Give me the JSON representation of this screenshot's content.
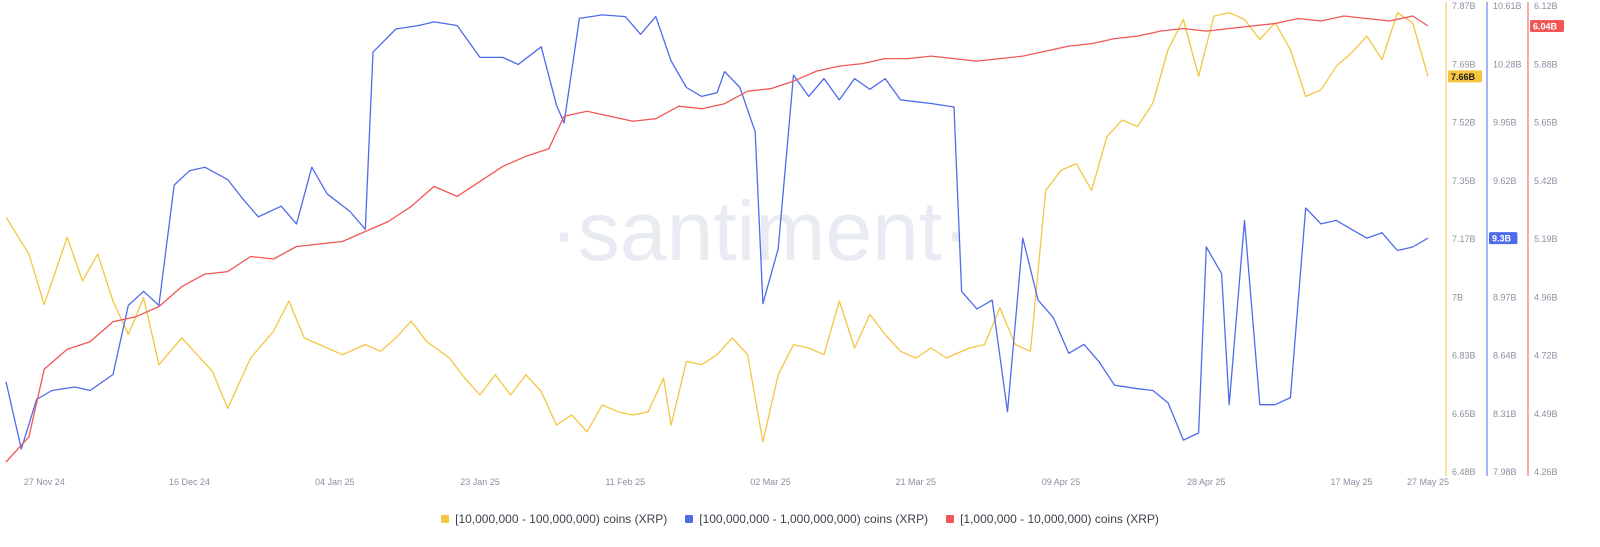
{
  "watermark": "·santiment·",
  "x_ticks": [
    "27 Nov 24",
    "16 Dec 24",
    "04 Jan 25",
    "23 Jan 25",
    "11 Feb 25",
    "02 Mar 25",
    "21 Mar 25",
    "09 Apr 25",
    "28 Apr 25",
    "17 May 25",
    "27 May 25"
  ],
  "axes": {
    "yellow": {
      "ticks": [
        "7.87B",
        "7.69B",
        "7.52B",
        "7.35B",
        "7.17B",
        "7B",
        "6.83B",
        "6.65B",
        "6.48B"
      ],
      "current": "7.66B",
      "color": "#f5c542"
    },
    "blue": {
      "ticks": [
        "10.61B",
        "10.28B",
        "9.95B",
        "9.62B",
        "9.3B",
        "8.97B",
        "8.64B",
        "8.31B",
        "7.98B"
      ],
      "current": "9.3B",
      "color": "#4f6bea"
    },
    "red": {
      "ticks": [
        "6.12B",
        "5.88B",
        "5.65B",
        "5.42B",
        "5.19B",
        "4.96B",
        "4.72B",
        "4.49B",
        "4.26B"
      ],
      "current": "6.04B",
      "color": "#f25757"
    }
  },
  "legend": [
    {
      "label": "[10,000,000 - 100,000,000) coins (XRP)",
      "color": "#f5c542"
    },
    {
      "label": "[100,000,000 - 1,000,000,000) coins (XRP)",
      "color": "#4f6bea"
    },
    {
      "label": "[1,000,000 - 10,000,000) coins (XRP)",
      "color": "#f25757"
    }
  ],
  "chart_data": {
    "type": "line",
    "x_range": [
      "2024-11-22",
      "2025-05-27"
    ],
    "series": [
      {
        "name": "[10,000,000 - 100,000,000) coins (XRP)",
        "axis": "yellow",
        "color": "#f5c542",
        "ylim": [
          6.48,
          7.87
        ],
        "points": [
          [
            "2024-11-22",
            7.24
          ],
          [
            "2024-11-25",
            7.13
          ],
          [
            "2024-11-27",
            6.98
          ],
          [
            "2024-11-30",
            7.18
          ],
          [
            "2024-12-02",
            7.05
          ],
          [
            "2024-12-04",
            7.13
          ],
          [
            "2024-12-06",
            6.99
          ],
          [
            "2024-12-08",
            6.89
          ],
          [
            "2024-12-10",
            7.0
          ],
          [
            "2024-12-12",
            6.8
          ],
          [
            "2024-12-15",
            6.88
          ],
          [
            "2024-12-17",
            6.83
          ],
          [
            "2024-12-19",
            6.78
          ],
          [
            "2024-12-21",
            6.67
          ],
          [
            "2024-12-24",
            6.82
          ],
          [
            "2024-12-27",
            6.9
          ],
          [
            "2024-12-29",
            6.99
          ],
          [
            "2024-12-31",
            6.88
          ],
          [
            "2025-01-03",
            6.85
          ],
          [
            "2025-01-05",
            6.83
          ],
          [
            "2025-01-08",
            6.86
          ],
          [
            "2025-01-10",
            6.84
          ],
          [
            "2025-01-12",
            6.88
          ],
          [
            "2025-01-14",
            6.93
          ],
          [
            "2025-01-16",
            6.87
          ],
          [
            "2025-01-19",
            6.82
          ],
          [
            "2025-01-21",
            6.76
          ],
          [
            "2025-01-23",
            6.71
          ],
          [
            "2025-01-25",
            6.77
          ],
          [
            "2025-01-27",
            6.71
          ],
          [
            "2025-01-29",
            6.77
          ],
          [
            "2025-01-31",
            6.72
          ],
          [
            "2025-02-02",
            6.62
          ],
          [
            "2025-02-04",
            6.65
          ],
          [
            "2025-02-06",
            6.6
          ],
          [
            "2025-02-08",
            6.68
          ],
          [
            "2025-02-10",
            6.66
          ],
          [
            "2025-02-12",
            6.65
          ],
          [
            "2025-02-14",
            6.66
          ],
          [
            "2025-02-16",
            6.76
          ],
          [
            "2025-02-17",
            6.62
          ],
          [
            "2025-02-19",
            6.81
          ],
          [
            "2025-02-21",
            6.8
          ],
          [
            "2025-02-23",
            6.83
          ],
          [
            "2025-02-25",
            6.88
          ],
          [
            "2025-02-27",
            6.83
          ],
          [
            "2025-03-01",
            6.57
          ],
          [
            "2025-03-03",
            6.77
          ],
          [
            "2025-03-05",
            6.86
          ],
          [
            "2025-03-07",
            6.85
          ],
          [
            "2025-03-09",
            6.83
          ],
          [
            "2025-03-11",
            6.99
          ],
          [
            "2025-03-13",
            6.85
          ],
          [
            "2025-03-15",
            6.95
          ],
          [
            "2025-03-17",
            6.89
          ],
          [
            "2025-03-19",
            6.84
          ],
          [
            "2025-03-21",
            6.82
          ],
          [
            "2025-03-23",
            6.85
          ],
          [
            "2025-03-25",
            6.82
          ],
          [
            "2025-03-28",
            6.85
          ],
          [
            "2025-03-30",
            6.86
          ],
          [
            "2025-04-01",
            6.97
          ],
          [
            "2025-04-03",
            6.86
          ],
          [
            "2025-04-05",
            6.84
          ],
          [
            "2025-04-07",
            7.32
          ],
          [
            "2025-04-09",
            7.38
          ],
          [
            "2025-04-11",
            7.4
          ],
          [
            "2025-04-13",
            7.32
          ],
          [
            "2025-04-15",
            7.48
          ],
          [
            "2025-04-17",
            7.53
          ],
          [
            "2025-04-19",
            7.51
          ],
          [
            "2025-04-21",
            7.58
          ],
          [
            "2025-04-23",
            7.74
          ],
          [
            "2025-04-25",
            7.83
          ],
          [
            "2025-04-27",
            7.66
          ],
          [
            "2025-04-29",
            7.84
          ],
          [
            "2025-05-01",
            7.85
          ],
          [
            "2025-05-03",
            7.83
          ],
          [
            "2025-05-05",
            7.77
          ],
          [
            "2025-05-07",
            7.82
          ],
          [
            "2025-05-09",
            7.74
          ],
          [
            "2025-05-11",
            7.6
          ],
          [
            "2025-05-13",
            7.62
          ],
          [
            "2025-05-15",
            7.69
          ],
          [
            "2025-05-17",
            7.73
          ],
          [
            "2025-05-19",
            7.78
          ],
          [
            "2025-05-21",
            7.71
          ],
          [
            "2025-05-23",
            7.85
          ],
          [
            "2025-05-25",
            7.82
          ],
          [
            "2025-05-27",
            7.66
          ]
        ]
      },
      {
        "name": "[100,000,000 - 1,000,000,000) coins (XRP)",
        "axis": "blue",
        "color": "#4f6bea",
        "ylim": [
          7.98,
          10.61
        ],
        "points": [
          [
            "2024-11-22",
            8.49
          ],
          [
            "2024-11-24",
            8.11
          ],
          [
            "2024-11-26",
            8.39
          ],
          [
            "2024-11-28",
            8.44
          ],
          [
            "2024-12-01",
            8.46
          ],
          [
            "2024-12-03",
            8.44
          ],
          [
            "2024-12-06",
            8.53
          ],
          [
            "2024-12-08",
            8.92
          ],
          [
            "2024-12-10",
            9.0
          ],
          [
            "2024-12-12",
            8.92
          ],
          [
            "2024-12-14",
            9.6
          ],
          [
            "2024-12-16",
            9.68
          ],
          [
            "2024-12-18",
            9.7
          ],
          [
            "2024-12-21",
            9.63
          ],
          [
            "2024-12-23",
            9.52
          ],
          [
            "2024-12-25",
            9.42
          ],
          [
            "2024-12-28",
            9.48
          ],
          [
            "2024-12-30",
            9.38
          ],
          [
            "2025-01-01",
            9.7
          ],
          [
            "2025-01-03",
            9.55
          ],
          [
            "2025-01-06",
            9.45
          ],
          [
            "2025-01-08",
            9.35
          ],
          [
            "2025-01-09",
            10.35
          ],
          [
            "2025-01-12",
            10.48
          ],
          [
            "2025-01-15",
            10.5
          ],
          [
            "2025-01-17",
            10.52
          ],
          [
            "2025-01-20",
            10.5
          ],
          [
            "2025-01-23",
            10.32
          ],
          [
            "2025-01-26",
            10.32
          ],
          [
            "2025-01-28",
            10.28
          ],
          [
            "2025-01-31",
            10.38
          ],
          [
            "2025-02-02",
            10.05
          ],
          [
            "2025-02-03",
            9.95
          ],
          [
            "2025-02-05",
            10.54
          ],
          [
            "2025-02-08",
            10.56
          ],
          [
            "2025-02-11",
            10.55
          ],
          [
            "2025-02-13",
            10.45
          ],
          [
            "2025-02-15",
            10.55
          ],
          [
            "2025-02-17",
            10.3
          ],
          [
            "2025-02-19",
            10.15
          ],
          [
            "2025-02-21",
            10.1
          ],
          [
            "2025-02-23",
            10.12
          ],
          [
            "2025-02-24",
            10.24
          ],
          [
            "2025-02-26",
            10.15
          ],
          [
            "2025-02-28",
            9.9
          ],
          [
            "2025-03-01",
            8.93
          ],
          [
            "2025-03-03",
            9.24
          ],
          [
            "2025-03-05",
            10.22
          ],
          [
            "2025-03-07",
            10.1
          ],
          [
            "2025-03-09",
            10.2
          ],
          [
            "2025-03-11",
            10.08
          ],
          [
            "2025-03-13",
            10.2
          ],
          [
            "2025-03-15",
            10.14
          ],
          [
            "2025-03-17",
            10.2
          ],
          [
            "2025-03-19",
            10.08
          ],
          [
            "2025-03-21",
            10.07
          ],
          [
            "2025-03-23",
            10.06
          ],
          [
            "2025-03-26",
            10.04
          ],
          [
            "2025-03-27",
            9.0
          ],
          [
            "2025-03-29",
            8.9
          ],
          [
            "2025-03-31",
            8.95
          ],
          [
            "2025-04-02",
            8.32
          ],
          [
            "2025-04-04",
            9.3
          ],
          [
            "2025-04-06",
            8.95
          ],
          [
            "2025-04-08",
            8.85
          ],
          [
            "2025-04-10",
            8.65
          ],
          [
            "2025-04-12",
            8.7
          ],
          [
            "2025-04-14",
            8.6
          ],
          [
            "2025-04-16",
            8.47
          ],
          [
            "2025-04-19",
            8.45
          ],
          [
            "2025-04-21",
            8.44
          ],
          [
            "2025-04-23",
            8.37
          ],
          [
            "2025-04-25",
            8.16
          ],
          [
            "2025-04-27",
            8.2
          ],
          [
            "2025-04-28",
            9.25
          ],
          [
            "2025-04-30",
            9.1
          ],
          [
            "2025-05-01",
            8.36
          ],
          [
            "2025-05-03",
            9.4
          ],
          [
            "2025-05-05",
            8.36
          ],
          [
            "2025-05-07",
            8.36
          ],
          [
            "2025-05-09",
            8.4
          ],
          [
            "2025-05-11",
            9.47
          ],
          [
            "2025-05-13",
            9.38
          ],
          [
            "2025-05-15",
            9.4
          ],
          [
            "2025-05-17",
            9.35
          ],
          [
            "2025-05-19",
            9.3
          ],
          [
            "2025-05-21",
            9.33
          ],
          [
            "2025-05-23",
            9.23
          ],
          [
            "2025-05-25",
            9.25
          ],
          [
            "2025-05-27",
            9.3
          ]
        ]
      },
      {
        "name": "[1,000,000 - 10,000,000) coins (XRP)",
        "axis": "red",
        "color": "#f25757",
        "ylim": [
          4.26,
          6.12
        ],
        "points": [
          [
            "2024-11-22",
            4.3
          ],
          [
            "2024-11-25",
            4.4
          ],
          [
            "2024-11-27",
            4.67
          ],
          [
            "2024-11-30",
            4.75
          ],
          [
            "2024-12-03",
            4.78
          ],
          [
            "2024-12-06",
            4.86
          ],
          [
            "2024-12-09",
            4.88
          ],
          [
            "2024-12-12",
            4.92
          ],
          [
            "2024-12-15",
            5.0
          ],
          [
            "2024-12-18",
            5.05
          ],
          [
            "2024-12-21",
            5.06
          ],
          [
            "2024-12-24",
            5.12
          ],
          [
            "2024-12-27",
            5.11
          ],
          [
            "2024-12-30",
            5.16
          ],
          [
            "2025-01-02",
            5.17
          ],
          [
            "2025-01-05",
            5.18
          ],
          [
            "2025-01-08",
            5.22
          ],
          [
            "2025-01-11",
            5.26
          ],
          [
            "2025-01-14",
            5.32
          ],
          [
            "2025-01-17",
            5.4
          ],
          [
            "2025-01-20",
            5.36
          ],
          [
            "2025-01-23",
            5.42
          ],
          [
            "2025-01-26",
            5.48
          ],
          [
            "2025-01-29",
            5.52
          ],
          [
            "2025-02-01",
            5.55
          ],
          [
            "2025-02-03",
            5.68
          ],
          [
            "2025-02-06",
            5.7
          ],
          [
            "2025-02-09",
            5.68
          ],
          [
            "2025-02-12",
            5.66
          ],
          [
            "2025-02-15",
            5.67
          ],
          [
            "2025-02-18",
            5.72
          ],
          [
            "2025-02-21",
            5.71
          ],
          [
            "2025-02-24",
            5.73
          ],
          [
            "2025-02-27",
            5.78
          ],
          [
            "2025-03-02",
            5.79
          ],
          [
            "2025-03-05",
            5.82
          ],
          [
            "2025-03-08",
            5.86
          ],
          [
            "2025-03-11",
            5.88
          ],
          [
            "2025-03-14",
            5.89
          ],
          [
            "2025-03-17",
            5.91
          ],
          [
            "2025-03-20",
            5.91
          ],
          [
            "2025-03-23",
            5.92
          ],
          [
            "2025-03-26",
            5.91
          ],
          [
            "2025-03-29",
            5.9
          ],
          [
            "2025-04-01",
            5.91
          ],
          [
            "2025-04-04",
            5.92
          ],
          [
            "2025-04-07",
            5.94
          ],
          [
            "2025-04-10",
            5.96
          ],
          [
            "2025-04-13",
            5.97
          ],
          [
            "2025-04-16",
            5.99
          ],
          [
            "2025-04-19",
            6.0
          ],
          [
            "2025-04-22",
            6.02
          ],
          [
            "2025-04-25",
            6.03
          ],
          [
            "2025-04-28",
            6.02
          ],
          [
            "2025-05-01",
            6.03
          ],
          [
            "2025-05-04",
            6.04
          ],
          [
            "2025-05-07",
            6.05
          ],
          [
            "2025-05-10",
            6.07
          ],
          [
            "2025-05-13",
            6.06
          ],
          [
            "2025-05-16",
            6.08
          ],
          [
            "2025-05-19",
            6.07
          ],
          [
            "2025-05-22",
            6.06
          ],
          [
            "2025-05-25",
            6.08
          ],
          [
            "2025-05-27",
            6.04
          ]
        ]
      }
    ],
    "legend_position": "bottom",
    "grid": false
  }
}
